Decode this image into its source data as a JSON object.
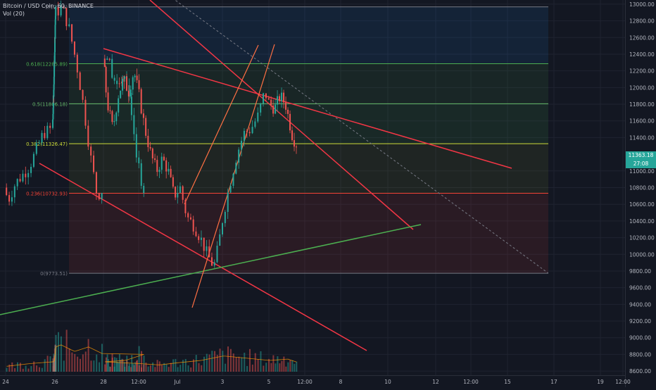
{
  "header": {
    "symbol_line": "Bitcoin / USD Coin, 60, BINANCE",
    "volume_label": "Vol (20)"
  },
  "price_tag": {
    "last_price": "11363.18",
    "countdown": "27:08",
    "color": "#26a69a"
  },
  "colors": {
    "background": "#131722",
    "grid": "#1f2330",
    "up": "#26a69a",
    "down": "#ef5350",
    "trend_red": "#f23645",
    "trend_green": "#4caf50",
    "channel_orange": "#ff7043",
    "diagonal_dashed": "#787b86"
  },
  "chart_data": {
    "type": "candlestick",
    "symbol": "Bitcoin / USD Coin, 60, BINANCE",
    "y_range": [
      8550,
      13050
    ],
    "y_ticks": [
      {
        "v": 13000,
        "label": "13000.00"
      },
      {
        "v": 12800,
        "label": "12800.00"
      },
      {
        "v": 12600,
        "label": "12600.00"
      },
      {
        "v": 12400,
        "label": "12400.00"
      },
      {
        "v": 12200,
        "label": "12200.00"
      },
      {
        "v": 12000,
        "label": "12000.00"
      },
      {
        "v": 11800,
        "label": "11800.00"
      },
      {
        "v": 11600,
        "label": "11600.00"
      },
      {
        "v": 11400,
        "label": "11400.00"
      },
      {
        "v": 11000,
        "label": "11000.00"
      },
      {
        "v": 10800,
        "label": "10800.00"
      },
      {
        "v": 10600,
        "label": "10600.00"
      },
      {
        "v": 10400,
        "label": "10400.00"
      },
      {
        "v": 10200,
        "label": "10200.00"
      },
      {
        "v": 10000,
        "label": "10000.00"
      },
      {
        "v": 9800,
        "label": "9800.00"
      },
      {
        "v": 9600,
        "label": "9600.00"
      },
      {
        "v": 9400,
        "label": "9400.00"
      },
      {
        "v": 9200,
        "label": "9200.00"
      },
      {
        "v": 9000,
        "label": "9000.00"
      },
      {
        "v": 8800,
        "label": "8800.00"
      },
      {
        "v": 8600,
        "label": "8600.00"
      }
    ],
    "x_ticks": [
      {
        "t": 0,
        "label": "24"
      },
      {
        "t": 2,
        "label": "26"
      },
      {
        "t": 4,
        "label": "28"
      },
      {
        "t": 5,
        "label": "12:00"
      },
      {
        "t": 6,
        "label": "Jul"
      },
      {
        "t": 7,
        "label": "3"
      },
      {
        "t": 8,
        "label": "5"
      },
      {
        "t": 9,
        "label": "12:00"
      },
      {
        "t": 10,
        "label": "8"
      },
      {
        "t": 11,
        "label": "10"
      },
      {
        "t": 12,
        "label": "12"
      },
      {
        "t": 13,
        "label": "12:00"
      },
      {
        "t": 14,
        "label": "15"
      },
      {
        "t": 15,
        "label": "17"
      },
      {
        "t": 16,
        "label": "19"
      },
      {
        "t": 17,
        "label": "12:00"
      }
    ],
    "price_path": [
      [
        0,
        10800
      ],
      [
        0.1,
        10650
      ],
      [
        0.25,
        10850
      ],
      [
        0.4,
        10950
      ],
      [
        0.55,
        11050
      ],
      [
        0.7,
        11250
      ],
      [
        0.85,
        11450
      ],
      [
        1,
        11500
      ],
      [
        1.15,
        11750
      ],
      [
        1.3,
        11900
      ],
      [
        1.45,
        12150
      ],
      [
        1.6,
        12300
      ],
      [
        1.75,
        12550
      ],
      [
        1.9,
        12800
      ],
      [
        2.05,
        12900
      ],
      [
        2.2,
        12950
      ],
      [
        2.35,
        12700
      ],
      [
        2.5,
        12300
      ],
      [
        2.65,
        11800
      ],
      [
        2.8,
        11200
      ],
      [
        2.95,
        10700
      ],
      [
        3.1,
        10800
      ],
      [
        3.25,
        11300
      ],
      [
        3.4,
        11900
      ],
      [
        3.55,
        12100
      ],
      [
        3.7,
        12000
      ],
      [
        3.85,
        12250
      ],
      [
        4,
        12350
      ],
      [
        4.15,
        11800
      ],
      [
        4.3,
        11500
      ],
      [
        4.45,
        11900
      ],
      [
        4.6,
        12100
      ],
      [
        4.75,
        11950
      ],
      [
        4.9,
        12200
      ],
      [
        5.05,
        11900
      ],
      [
        5.2,
        11500
      ],
      [
        5.35,
        11200
      ],
      [
        5.5,
        11000
      ],
      [
        5.65,
        11150
      ],
      [
        5.8,
        11000
      ],
      [
        5.95,
        10700
      ],
      [
        6.1,
        10800
      ],
      [
        6.25,
        10450
      ],
      [
        6.4,
        10350
      ],
      [
        6.55,
        10200
      ],
      [
        6.7,
        10000
      ],
      [
        6.85,
        9850
      ],
      [
        6.95,
        10100
      ],
      [
        7.05,
        10450
      ],
      [
        7.2,
        10850
      ],
      [
        7.35,
        11200
      ],
      [
        7.5,
        11450
      ],
      [
        7.65,
        11500
      ],
      [
        7.8,
        11650
      ],
      [
        7.95,
        11950
      ],
      [
        8.05,
        11800
      ],
      [
        8.2,
        11750
      ],
      [
        8.35,
        11900
      ],
      [
        8.5,
        11800
      ],
      [
        8.6,
        11600
      ],
      [
        8.7,
        11400
      ],
      [
        8.8,
        11330
      ]
    ],
    "volume_path": [
      [
        0,
        0.12
      ],
      [
        0.5,
        0.18
      ],
      [
        1,
        0.22
      ],
      [
        1.5,
        0.25
      ],
      [
        1.8,
        0.45
      ],
      [
        2.1,
        0.6
      ],
      [
        2.4,
        0.45
      ],
      [
        2.7,
        0.55
      ],
      [
        3,
        0.4
      ],
      [
        3.5,
        0.25
      ],
      [
        4,
        0.22
      ],
      [
        4.5,
        0.2
      ],
      [
        5,
        0.18
      ],
      [
        5.5,
        0.15
      ],
      [
        6,
        0.2
      ],
      [
        6.5,
        0.25
      ],
      [
        7,
        0.35
      ],
      [
        7.5,
        0.3
      ],
      [
        8,
        0.25
      ],
      [
        8.5,
        0.28
      ],
      [
        8.8,
        0.2
      ]
    ],
    "fib_levels": [
      {
        "label": "1(12968)",
        "v": 12968,
        "color": "#787b86"
      },
      {
        "label": "0.618(12285.89)",
        "v": 12285.89,
        "color": "#4caf50"
      },
      {
        "label": "0.5(11806.18)",
        "v": 11806.18,
        "color": "#66bb6a"
      },
      {
        "label": "0.382(11326.47)",
        "v": 11326.47,
        "color": "#cddc39"
      },
      {
        "label": "0.236(10732.93)",
        "v": 10732.93,
        "color": "#f44336"
      },
      {
        "label": "0(9773.51)",
        "v": 9773.51,
        "color": "#787b86"
      }
    ]
  }
}
